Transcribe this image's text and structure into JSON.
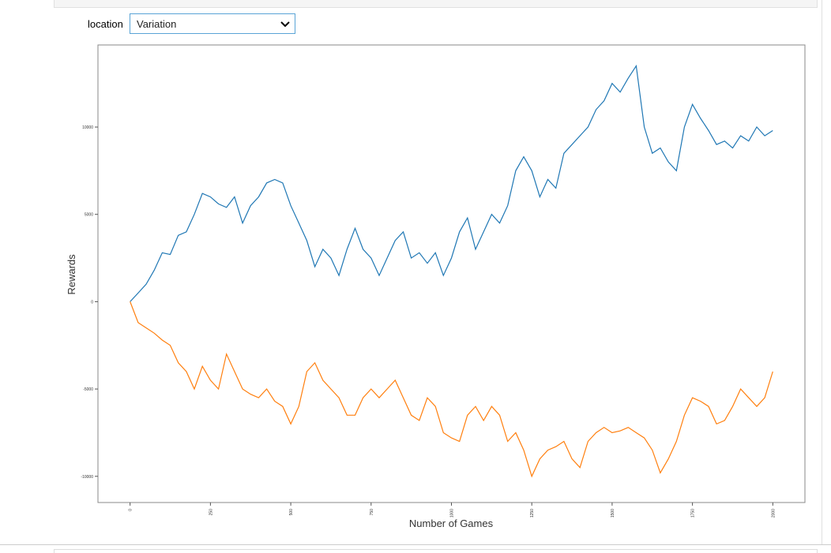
{
  "widget": {
    "label": "location",
    "value": "Variation"
  },
  "chart_data": {
    "type": "line",
    "xlabel": "Number of Games",
    "ylabel": "Rewards",
    "x": [
      0,
      25,
      50,
      75,
      100,
      125,
      150,
      175,
      200,
      225,
      250,
      275,
      300,
      325,
      350,
      375,
      400,
      425,
      450,
      475,
      500,
      525,
      550,
      575,
      600,
      625,
      650,
      675,
      700,
      725,
      750,
      775,
      800,
      825,
      850,
      875,
      900,
      925,
      950,
      975,
      1000,
      1025,
      1050,
      1075,
      1100,
      1125,
      1150,
      1175,
      1200,
      1225,
      1250,
      1275,
      1300,
      1325,
      1350,
      1375,
      1400,
      1425,
      1450,
      1475,
      1500,
      1525,
      1550,
      1575,
      1600,
      1625,
      1650,
      1675,
      1700,
      1725,
      1750,
      1775,
      1800,
      1825,
      1850,
      1875,
      1900,
      1925,
      1950,
      1975,
      2000
    ],
    "series": [
      {
        "color": "#1f77b4",
        "values": [
          0,
          500,
          1000,
          1800,
          2800,
          2700,
          3800,
          4000,
          5000,
          6200,
          6000,
          5600,
          5400,
          6000,
          4500,
          5500,
          6000,
          6800,
          7000,
          6800,
          5500,
          4500,
          3500,
          2000,
          3000,
          2500,
          1500,
          3000,
          4200,
          3000,
          2500,
          1500,
          2500,
          3500,
          4000,
          2500,
          2800,
          2200,
          2800,
          1500,
          2500,
          4000,
          4800,
          3000,
          4000,
          5000,
          4500,
          5500,
          7500,
          8300,
          7500,
          6000,
          7000,
          6500,
          8500,
          9000,
          9500,
          10000,
          11000,
          11500,
          12500,
          12000,
          12800,
          13500,
          10000,
          8500,
          8800,
          8000,
          7500,
          10000,
          11300,
          10500,
          9800,
          9000,
          9200,
          8800,
          9500,
          9200,
          10000,
          9500,
          9800
        ]
      },
      {
        "color": "#ff7f0e",
        "values": [
          0,
          -1200,
          -1500,
          -1800,
          -2200,
          -2500,
          -3500,
          -4000,
          -5000,
          -3700,
          -4500,
          -5000,
          -3000,
          -4000,
          -5000,
          -5300,
          -5500,
          -5000,
          -5700,
          -6000,
          -7000,
          -6000,
          -4000,
          -3500,
          -4500,
          -5000,
          -5500,
          -6500,
          -6500,
          -5500,
          -5000,
          -5500,
          -5000,
          -4500,
          -5500,
          -6500,
          -6800,
          -5500,
          -6000,
          -7500,
          -7800,
          -8000,
          -6500,
          -6000,
          -6800,
          -6000,
          -6500,
          -8000,
          -7500,
          -8500,
          -10000,
          -9000,
          -8500,
          -8300,
          -8000,
          -9000,
          -9500,
          -8000,
          -7500,
          -7200,
          -7500,
          -7400,
          -7200,
          -7500,
          -7800,
          -8500,
          -9800,
          -9000,
          -8000,
          -6500,
          -5500,
          -5700,
          -6000,
          -7000,
          -6800,
          -6000,
          -5000,
          -5500,
          -6000,
          -5500,
          -4000
        ]
      }
    ],
    "xlim": [
      -100,
      2100
    ],
    "ylim": [
      -11500,
      14700
    ],
    "xticks": [
      0,
      250,
      500,
      750,
      1000,
      1250,
      1500,
      1750,
      2000
    ],
    "yticks": [
      -10000,
      -5000,
      0,
      5000,
      10000
    ]
  }
}
